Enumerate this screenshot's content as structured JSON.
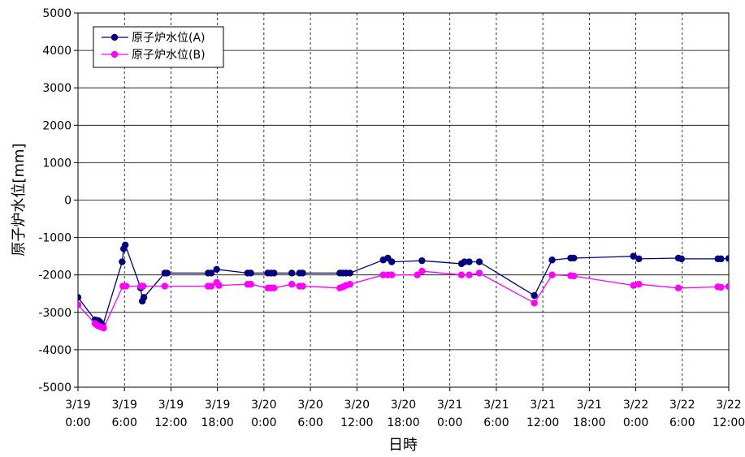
{
  "chart_data": {
    "type": "line",
    "xlabel": "日時",
    "ylabel": "原子炉水位[mm]",
    "ylim": [
      -5000,
      5000
    ],
    "yticks": [
      5000,
      4000,
      3000,
      2000,
      1000,
      0,
      -1000,
      -2000,
      -3000,
      -4000,
      -5000
    ],
    "xlim": [
      0,
      84
    ],
    "xticks": [
      {
        "date": "3/19",
        "time": "0:00"
      },
      {
        "date": "3/19",
        "time": "6:00"
      },
      {
        "date": "3/19",
        "time": "12:00"
      },
      {
        "date": "3/19",
        "time": "18:00"
      },
      {
        "date": "3/20",
        "time": "0:00"
      },
      {
        "date": "3/20",
        "time": "6:00"
      },
      {
        "date": "3/20",
        "time": "12:00"
      },
      {
        "date": "3/20",
        "time": "18:00"
      },
      {
        "date": "3/21",
        "time": "0:00"
      },
      {
        "date": "3/21",
        "time": "6:00"
      },
      {
        "date": "3/21",
        "time": "12:00"
      },
      {
        "date": "3/21",
        "time": "18:00"
      },
      {
        "date": "3/22",
        "time": "0:00"
      },
      {
        "date": "3/22",
        "time": "6:00"
      },
      {
        "date": "3/22",
        "time": "12:00"
      }
    ],
    "grid": true,
    "legend_position": "top-left",
    "series": [
      {
        "name": "原子炉水位(A)",
        "color": "#000080",
        "points": [
          [
            0,
            -2600
          ],
          [
            2.2,
            -3200
          ],
          [
            2.4,
            -3250
          ],
          [
            2.6,
            -3220
          ],
          [
            2.8,
            -3250
          ],
          [
            3.0,
            -3300
          ],
          [
            3.2,
            -3350
          ],
          [
            5.7,
            -1650
          ],
          [
            5.9,
            -1300
          ],
          [
            6.1,
            -1200
          ],
          [
            8.1,
            -2350
          ],
          [
            8.3,
            -2700
          ],
          [
            8.5,
            -2600
          ],
          [
            11.2,
            -1950
          ],
          [
            11.5,
            -1950
          ],
          [
            16.8,
            -1950
          ],
          [
            17.2,
            -1950
          ],
          [
            17.9,
            -1850
          ],
          [
            21.9,
            -1950
          ],
          [
            22.3,
            -1950
          ],
          [
            24.5,
            -1950
          ],
          [
            24.9,
            -1950
          ],
          [
            25.3,
            -1950
          ],
          [
            27.6,
            -1950
          ],
          [
            28.6,
            -1950
          ],
          [
            29.0,
            -1950
          ],
          [
            33.8,
            -1950
          ],
          [
            34.2,
            -1950
          ],
          [
            34.6,
            -1950
          ],
          [
            35.1,
            -1950
          ],
          [
            39.4,
            -1600
          ],
          [
            40.0,
            -1550
          ],
          [
            40.5,
            -1650
          ],
          [
            44.4,
            -1620
          ],
          [
            49.5,
            -1700
          ],
          [
            49.9,
            -1650
          ],
          [
            50.5,
            -1650
          ],
          [
            51.8,
            -1650
          ],
          [
            58.9,
            -2550
          ],
          [
            61.2,
            -1600
          ],
          [
            63.6,
            -1550
          ],
          [
            64.0,
            -1550
          ],
          [
            71.7,
            -1500
          ],
          [
            72.4,
            -1570
          ],
          [
            77.5,
            -1550
          ],
          [
            77.9,
            -1570
          ],
          [
            82.6,
            -1570
          ],
          [
            83.0,
            -1570
          ],
          [
            84,
            -1560
          ]
        ]
      },
      {
        "name": "原子炉水位(B)",
        "color": "#FF00FF",
        "points": [
          [
            0,
            -2800
          ],
          [
            2.2,
            -3300
          ],
          [
            2.5,
            -3350
          ],
          [
            2.8,
            -3380
          ],
          [
            3.1,
            -3400
          ],
          [
            3.3,
            -3420
          ],
          [
            5.8,
            -2300
          ],
          [
            6.2,
            -2300
          ],
          [
            8.1,
            -2300
          ],
          [
            8.4,
            -2300
          ],
          [
            11.2,
            -2300
          ],
          [
            16.8,
            -2300
          ],
          [
            17.2,
            -2300
          ],
          [
            17.9,
            -2200
          ],
          [
            18.2,
            -2280
          ],
          [
            21.9,
            -2250
          ],
          [
            22.3,
            -2250
          ],
          [
            24.5,
            -2350
          ],
          [
            24.9,
            -2350
          ],
          [
            25.3,
            -2350
          ],
          [
            27.6,
            -2250
          ],
          [
            28.6,
            -2300
          ],
          [
            29.0,
            -2300
          ],
          [
            33.8,
            -2350
          ],
          [
            34.2,
            -2320
          ],
          [
            34.6,
            -2280
          ],
          [
            35.1,
            -2250
          ],
          [
            39.4,
            -2000
          ],
          [
            40.0,
            -2000
          ],
          [
            40.5,
            -2000
          ],
          [
            43.8,
            -2000
          ],
          [
            44.4,
            -1900
          ],
          [
            49.5,
            -2000
          ],
          [
            50.5,
            -2000
          ],
          [
            51.8,
            -1950
          ],
          [
            58.9,
            -2750
          ],
          [
            61.2,
            -2000
          ],
          [
            63.6,
            -2020
          ],
          [
            64.0,
            -2030
          ],
          [
            71.7,
            -2280
          ],
          [
            72.4,
            -2250
          ],
          [
            77.5,
            -2350
          ],
          [
            82.6,
            -2320
          ],
          [
            83.0,
            -2330
          ],
          [
            84,
            -2310
          ]
        ]
      }
    ]
  }
}
